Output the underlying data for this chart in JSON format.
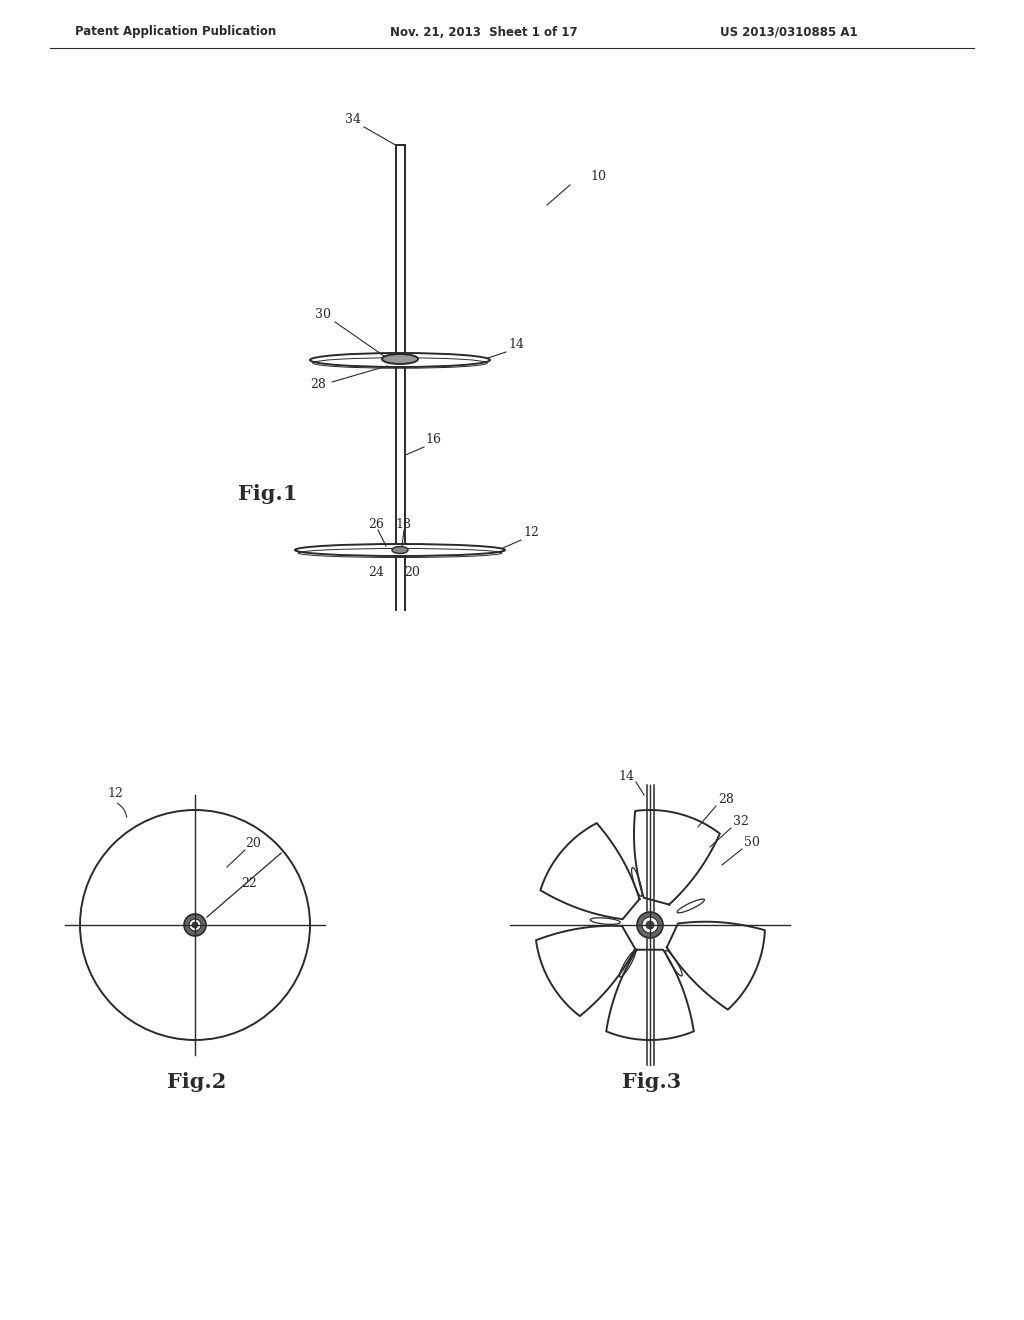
{
  "bg_color": "#ffffff",
  "header_left": "Patent Application Publication",
  "header_mid": "Nov. 21, 2013  Sheet 1 of 17",
  "header_right": "US 2013/0310885 A1",
  "fig1_label": "Fig.1",
  "fig2_label": "Fig.2",
  "fig3_label": "Fig.3",
  "line_color": "#2a2a2a",
  "label_color": "#2a2a2a"
}
